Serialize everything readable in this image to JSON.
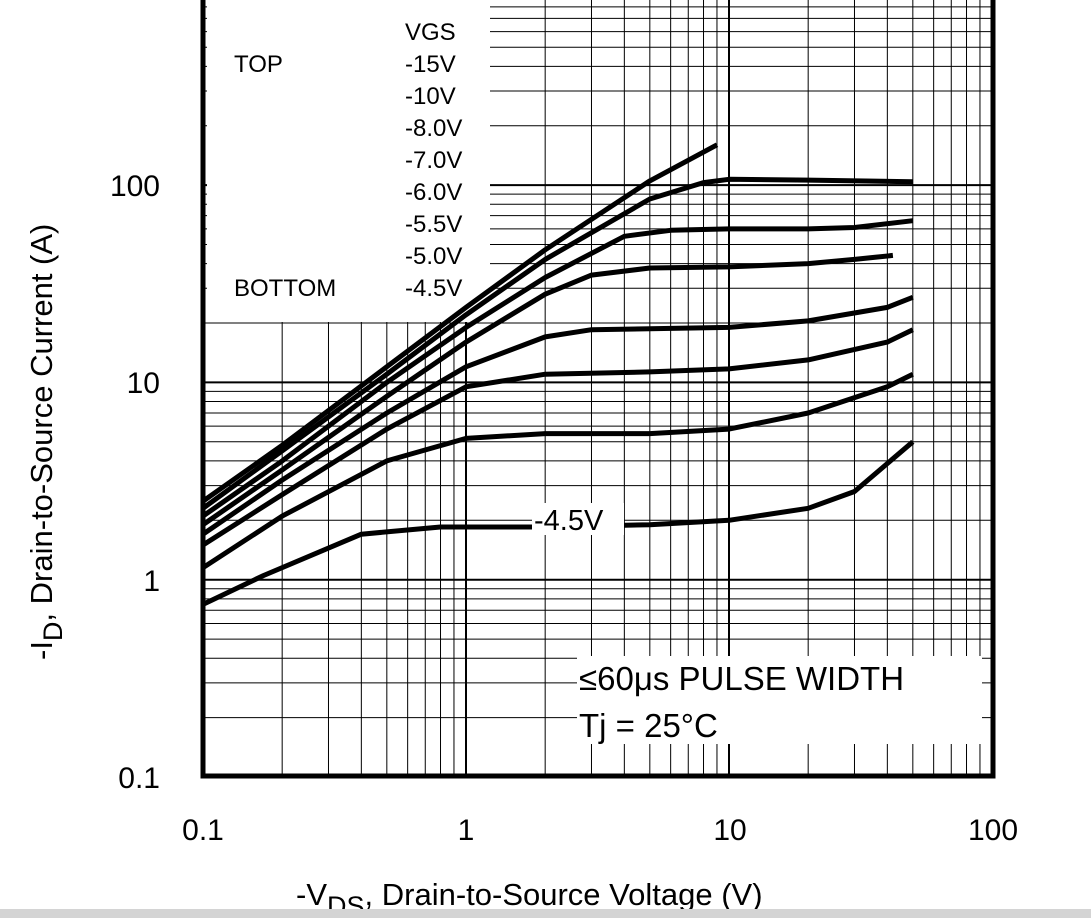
{
  "chart_data": {
    "type": "line",
    "title": "",
    "xlabel_prefix": "-V",
    "xlabel_sub": "DS",
    "xlabel_rest": ", Drain-to-Source Voltage (V)",
    "ylabel_prefix": "-I",
    "ylabel_sub": "D",
    "ylabel_rest": ", Drain-to-Source Current (A)",
    "xscale": "log",
    "yscale": "log",
    "xlim": [
      0.1,
      100
    ],
    "ylim": [
      0.1,
      1000
    ],
    "grid": true,
    "x_ticks": [
      "0.1",
      "1",
      "10",
      "100"
    ],
    "y_ticks": [
      "0.1",
      "1",
      "10",
      "100"
    ],
    "legend": {
      "placement": "top-left",
      "header": "VGS",
      "top_label": "TOP",
      "bottom_label": "BOTTOM",
      "entries": [
        "-15V",
        "-10V",
        "-8.0V",
        "-7.0V",
        "-6.0V",
        "-5.5V",
        "-5.0V",
        "-4.5V"
      ]
    },
    "curve_label": "-4.5V",
    "annotations": [
      "≤60μs PULSE WIDTH",
      "Tj = 25°C"
    ],
    "series": [
      {
        "name": "-15V",
        "points": [
          [
            0.1,
            2.5
          ],
          [
            0.2,
            4.8
          ],
          [
            0.5,
            12
          ],
          [
            1,
            24
          ],
          [
            2,
            47
          ],
          [
            5,
            105
          ],
          [
            9,
            160
          ]
        ]
      },
      {
        "name": "-10V",
        "points": [
          [
            0.1,
            2.3
          ],
          [
            0.2,
            4.5
          ],
          [
            0.5,
            11
          ],
          [
            1,
            22
          ],
          [
            2,
            42
          ],
          [
            5,
            85
          ],
          [
            8,
            103
          ],
          [
            10,
            107
          ],
          [
            20,
            106
          ],
          [
            50,
            104
          ]
        ]
      },
      {
        "name": "-8.0V",
        "points": [
          [
            0.1,
            2.1
          ],
          [
            0.2,
            4
          ],
          [
            0.5,
            10
          ],
          [
            1,
            19
          ],
          [
            2,
            34
          ],
          [
            4,
            55
          ],
          [
            6,
            59
          ],
          [
            10,
            60
          ],
          [
            20,
            60
          ],
          [
            30,
            61
          ],
          [
            50,
            66
          ]
        ]
      },
      {
        "name": "-7.0V",
        "points": [
          [
            0.1,
            1.9
          ],
          [
            0.2,
            3.6
          ],
          [
            0.5,
            8.5
          ],
          [
            1,
            16
          ],
          [
            2,
            28
          ],
          [
            3,
            35
          ],
          [
            5,
            38
          ],
          [
            10,
            38.5
          ],
          [
            20,
            40
          ],
          [
            30,
            42
          ],
          [
            42,
            44
          ]
        ]
      },
      {
        "name": "-6.0V",
        "points": [
          [
            0.1,
            1.7
          ],
          [
            0.2,
            3.2
          ],
          [
            0.5,
            7
          ],
          [
            1,
            12
          ],
          [
            2,
            17
          ],
          [
            3,
            18.5
          ],
          [
            10,
            19
          ],
          [
            20,
            20.5
          ],
          [
            40,
            24
          ],
          [
            50,
            27
          ]
        ]
      },
      {
        "name": "-5.5V",
        "points": [
          [
            0.1,
            1.5
          ],
          [
            0.2,
            2.7
          ],
          [
            0.5,
            5.8
          ],
          [
            1,
            9.5
          ],
          [
            2,
            11
          ],
          [
            5,
            11.3
          ],
          [
            10,
            11.7
          ],
          [
            20,
            13
          ],
          [
            40,
            16
          ],
          [
            50,
            18.5
          ]
        ]
      },
      {
        "name": "-5.0V",
        "points": [
          [
            0.1,
            1.15
          ],
          [
            0.2,
            2.1
          ],
          [
            0.5,
            4
          ],
          [
            1,
            5.2
          ],
          [
            2,
            5.5
          ],
          [
            5,
            5.5
          ],
          [
            10,
            5.8
          ],
          [
            20,
            7
          ],
          [
            40,
            9.5
          ],
          [
            50,
            11
          ]
        ]
      },
      {
        "name": "-4.5V",
        "points": [
          [
            0.1,
            0.75
          ],
          [
            0.17,
            1.05
          ],
          [
            0.4,
            1.7
          ],
          [
            0.8,
            1.85
          ],
          [
            2,
            1.85
          ],
          [
            5,
            1.9
          ],
          [
            10,
            2
          ],
          [
            20,
            2.3
          ],
          [
            30,
            2.8
          ],
          [
            50,
            5
          ]
        ]
      }
    ]
  }
}
